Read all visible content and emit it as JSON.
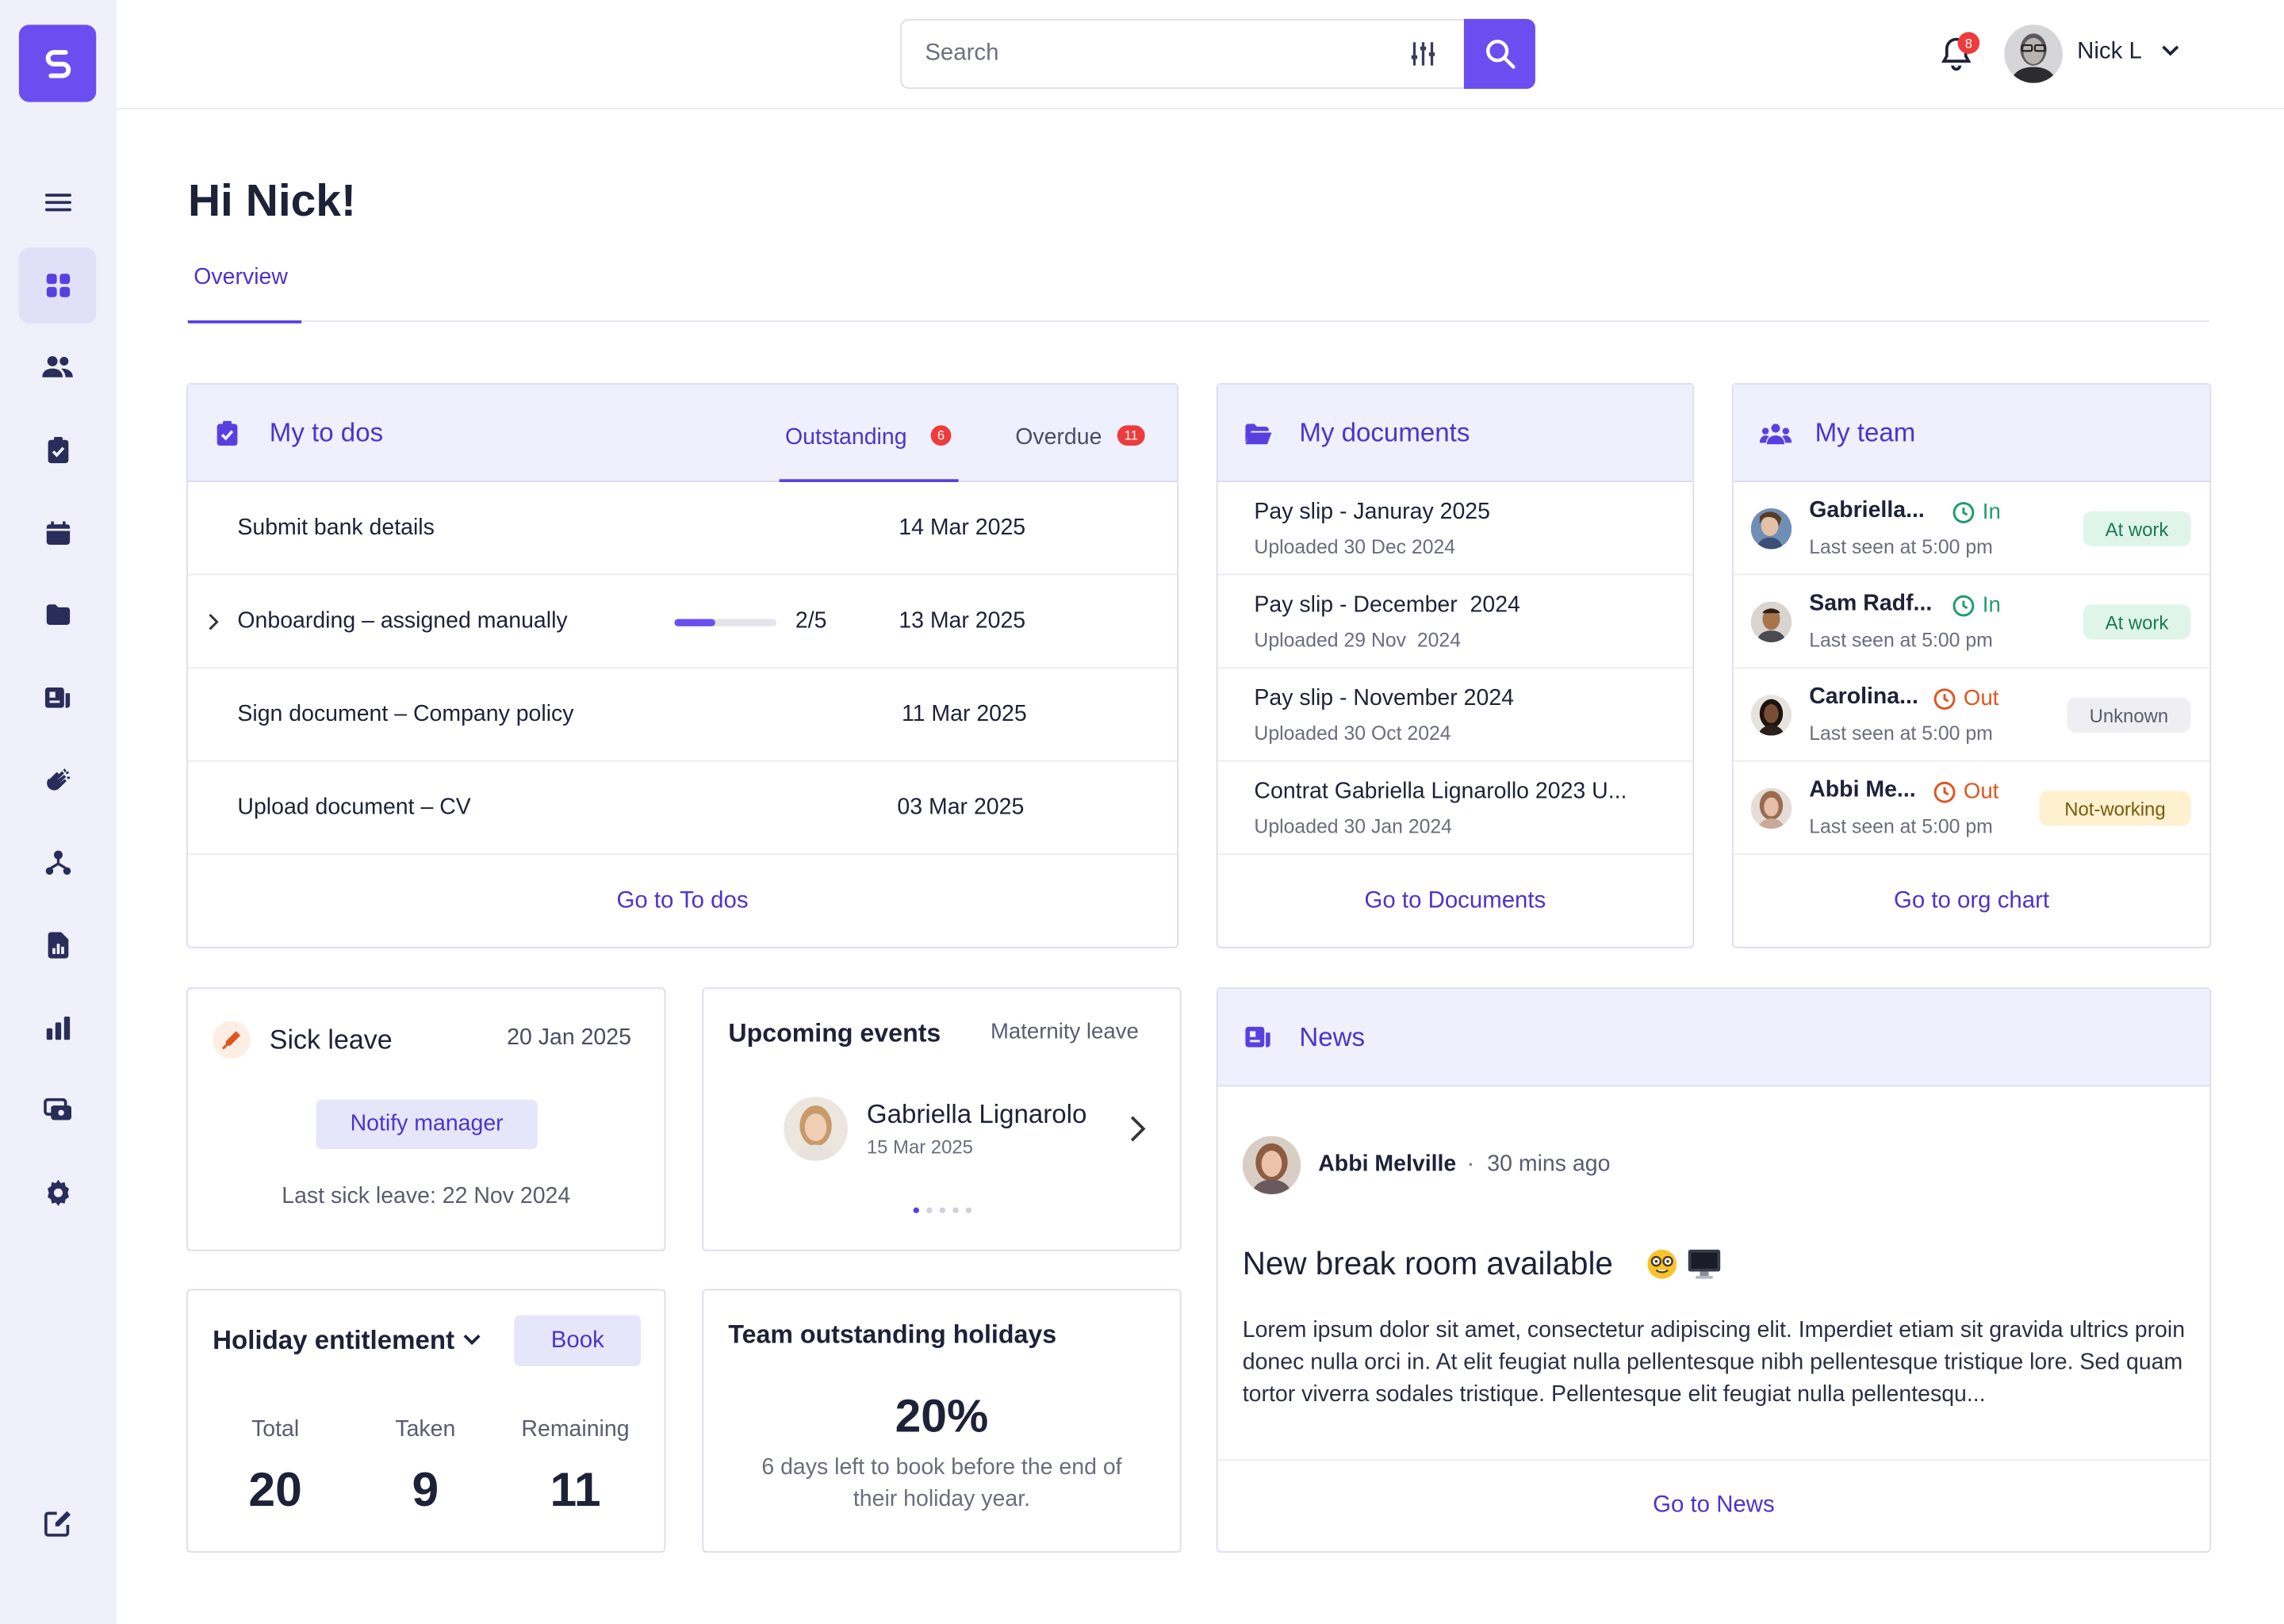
{
  "brand": {
    "accent": "#6b4ef0",
    "link": "#4b35c8",
    "sidebar_bg": "#f0f0fb",
    "card_head_bg": "#eef0fd",
    "badge_red": "#ee3b3b"
  },
  "sidebar": {
    "items": [
      {
        "icon": "menu-icon"
      },
      {
        "icon": "dashboard-icon",
        "active": true
      },
      {
        "icon": "people-icon"
      },
      {
        "icon": "clipboard-check-icon"
      },
      {
        "icon": "calendar-icon"
      },
      {
        "icon": "folder-icon"
      },
      {
        "icon": "news-icon"
      },
      {
        "icon": "clap-hands-icon"
      },
      {
        "icon": "org-chart-icon"
      },
      {
        "icon": "report-icon"
      },
      {
        "icon": "bar-chart-icon"
      },
      {
        "icon": "payments-icon"
      },
      {
        "icon": "gear-icon"
      }
    ],
    "bottom_icon": "edit-icon"
  },
  "header": {
    "search_placeholder": "Search",
    "notifications_count": "8",
    "user_name": "Nick L"
  },
  "page": {
    "greeting": "Hi Nick!",
    "tabs": [
      {
        "label": "Overview",
        "active": true
      }
    ]
  },
  "todos": {
    "title": "My to dos",
    "tabs": [
      {
        "label": "Outstanding",
        "count": "6",
        "active": true
      },
      {
        "label": "Overdue",
        "count": "11"
      }
    ],
    "items": [
      {
        "label": "Submit bank details",
        "date": "14 Mar 2025"
      },
      {
        "label": "Onboarding – assigned manually",
        "date": "13 Mar 2025",
        "progress": "2/5",
        "progress_fraction": 0.4
      },
      {
        "label": "Sign document – Company policy",
        "date": "11 Mar 2025"
      },
      {
        "label": "Upload document – CV",
        "date": "03 Mar 2025"
      }
    ],
    "link": "Go to To dos"
  },
  "documents": {
    "title": "My documents",
    "items": [
      {
        "name": "Pay slip - Januray 2025",
        "uploaded": "Uploaded 30 Dec 2024"
      },
      {
        "name": "Pay slip - December  2024",
        "uploaded": "Uploaded 29 Nov  2024"
      },
      {
        "name": "Pay slip - November 2024",
        "uploaded": "Uploaded 30 Oct 2024"
      },
      {
        "name": "Contrat Gabriella Lignarollo 2023 U...",
        "uploaded": "Uploaded 30 Jan 2024"
      }
    ],
    "link": "Go to Documents"
  },
  "team": {
    "title": "My team",
    "members": [
      {
        "name": "Gabriella...",
        "status": "In",
        "last_seen": "Last seen at 5:00 pm",
        "badge": "At work"
      },
      {
        "name": "Sam Radf...",
        "status": "In",
        "last_seen": "Last seen at 5:00 pm",
        "badge": "At work"
      },
      {
        "name": "Carolina...",
        "status": "Out",
        "last_seen": "Last seen at 5:00 pm",
        "badge": "Unknown"
      },
      {
        "name": "Abbi Me...",
        "status": "Out",
        "last_seen": "Last seen at 5:00 pm",
        "badge": "Not-working"
      }
    ],
    "link": "Go to org chart"
  },
  "sick": {
    "title": "Sick leave",
    "date": "20 Jan 2025",
    "button": "Notify manager",
    "last": "Last sick leave: 22 Nov 2024"
  },
  "events": {
    "title": "Upcoming events",
    "type": "Maternity leave",
    "person": "Gabriella Lignarolo",
    "date": "15 Mar 2025"
  },
  "holiday": {
    "title": "Holiday entitlement",
    "button": "Book",
    "total_label": "Total",
    "total": "20",
    "taken_label": "Taken",
    "taken": "9",
    "remaining_label": "Remaining",
    "remaining": "11"
  },
  "team_holidays": {
    "title": "Team outstanding holidays",
    "percent": "20%",
    "desc": "6 days left to book before the end of their holiday year."
  },
  "news": {
    "title": "News",
    "author": "Abbi Melville",
    "separator": "·",
    "time": "30 mins ago",
    "headline": "New break room available",
    "headline_icons": [
      "nerd-face-emoji",
      "computer-monitor-emoji"
    ],
    "body": "Lorem ipsum dolor sit amet, consectetur adipiscing elit. Imperdiet etiam sit gravida ultrics proin donec nulla orci in. At elit feugiat nulla pellentesque nibh pellentesque tristique lore. Sed quam tortor viverra sodales tristique. Pellentesque elit feugiat nulla pellentesqu...",
    "link": "Go to News"
  }
}
